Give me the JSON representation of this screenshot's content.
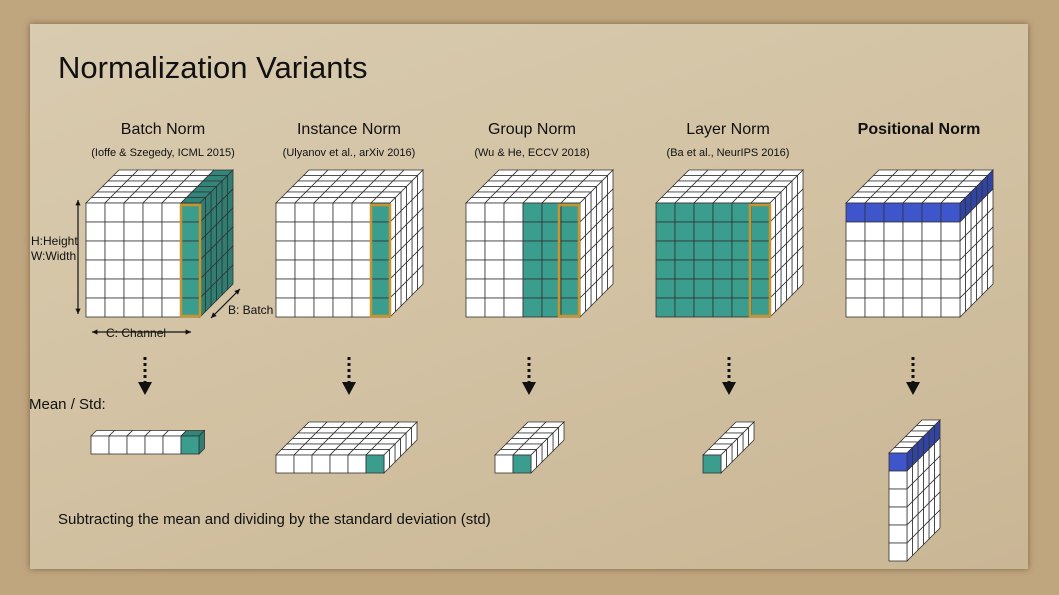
{
  "title": "Normalization Variants",
  "panels": [
    {
      "key": "batch",
      "title": "Batch Norm",
      "citation": "(Ioffe & Szegedy, ICML 2015)"
    },
    {
      "key": "instance",
      "title": "Instance Norm",
      "citation": "(Ulyanov et al., arXiv 2016)"
    },
    {
      "key": "group",
      "title": "Group Norm",
      "citation": "(Wu & He, ECCV 2018)"
    },
    {
      "key": "layer",
      "title": "Layer Norm",
      "citation": "(Ba et al., NeurIPS 2016)"
    },
    {
      "key": "positional",
      "title": "Positional Norm",
      "citation": ""
    }
  ],
  "axis_labels": {
    "height": "H:Height",
    "width": "W:Width",
    "batch": "B: Batch",
    "channel": "C: Channel"
  },
  "mean_std_label": "Mean / Std:",
  "footer": "Subtracting the mean and dividing by the standard deviation (std)",
  "colors": {
    "teal": "#3a9d8e",
    "blue": "#3f55cc",
    "highlight_outline": "#c9942c",
    "cell_border": "#333333"
  },
  "icons": {
    "arrow": "dotted-down-arrow"
  }
}
